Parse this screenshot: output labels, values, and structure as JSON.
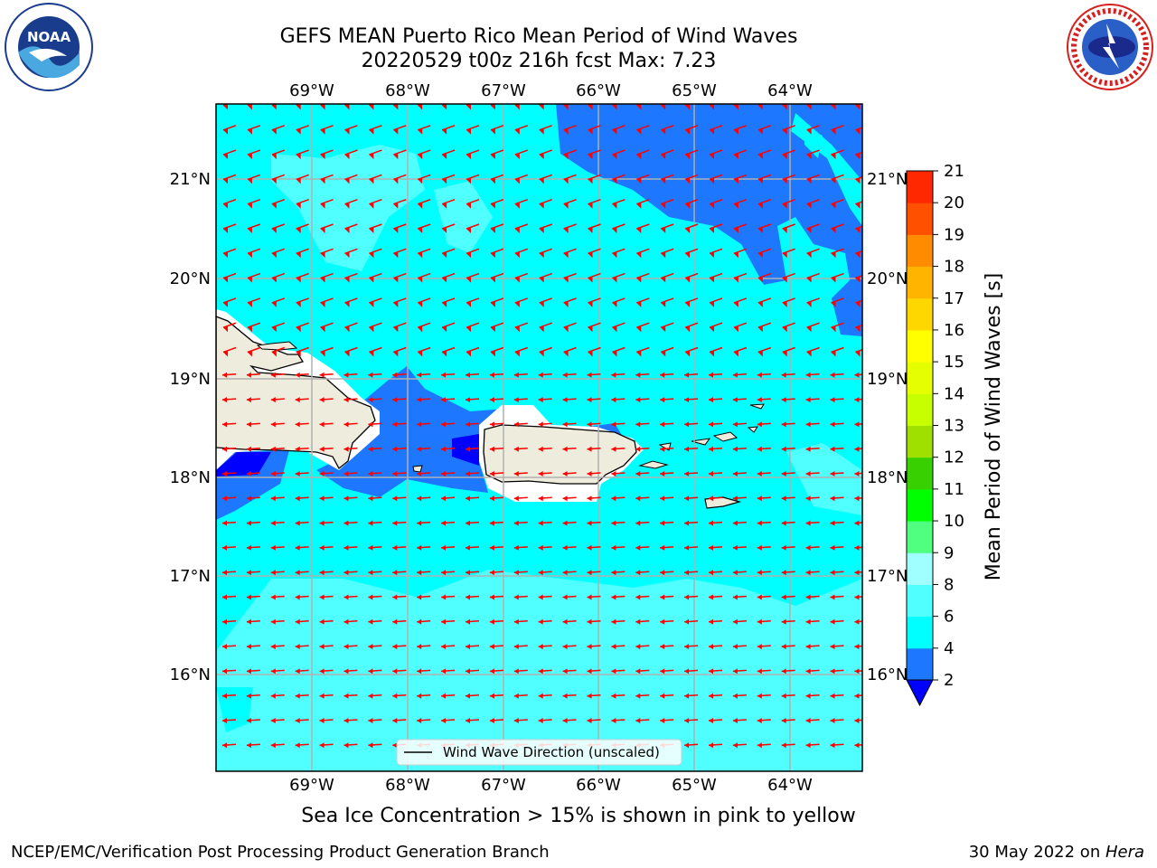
{
  "header": {
    "title_line1": "GEFS MEAN Puerto Rico Mean Period of Wind Waves",
    "title_line2": "20220529 t00z 216h fcst   Max: 7.23"
  },
  "logos": {
    "left": {
      "icon": "noaa-logo",
      "text": "NOAA",
      "ring_text_top": "NATIONAL OCEANIC AND ATMOSPHERIC ADMINISTRATION",
      "ring_text_bottom": "U.S. DEPARTMENT OF COMMERCE"
    },
    "right": {
      "icon": "nws-logo",
      "ring_text": "NATIONAL WEATHER SERVICE"
    }
  },
  "map": {
    "lon_ticks": [
      "69°W",
      "68°W",
      "67°W",
      "66°W",
      "65°W",
      "64°W"
    ],
    "lat_ticks": [
      "21°N",
      "20°N",
      "19°N",
      "18°N",
      "17°N",
      "16°N"
    ],
    "legend_label": "Wind Wave Direction (unscaled)",
    "arrow_color": "#ff0000",
    "land_color": "#eeecdc",
    "grid_color": "#b0b0b0"
  },
  "colorbar": {
    "label": "Mean Period of Wind Waves [s]",
    "levels": [
      "2",
      "4",
      "6",
      "8",
      "9",
      "10",
      "11",
      "12",
      "13",
      "14",
      "15",
      "16",
      "17",
      "18",
      "19",
      "20",
      "21"
    ],
    "colors": [
      "#0000ff",
      "#1e78ff",
      "#00ffff",
      "#50ffff",
      "#a0ffff",
      "#50ff80",
      "#00ff00",
      "#38d000",
      "#a0e000",
      "#c8ff00",
      "#e6ff00",
      "#ffff00",
      "#ffd700",
      "#ffb400",
      "#ff8c00",
      "#ff5000",
      "#ff2800",
      "#ff0000"
    ]
  },
  "caption": "Sea Ice Concentration > 15% is shown in pink to yellow",
  "footer": {
    "left": "NCEP/EMC/Verification Post Processing Product Generation Branch",
    "date": "30 May 2022 on ",
    "host": "Hera"
  }
}
